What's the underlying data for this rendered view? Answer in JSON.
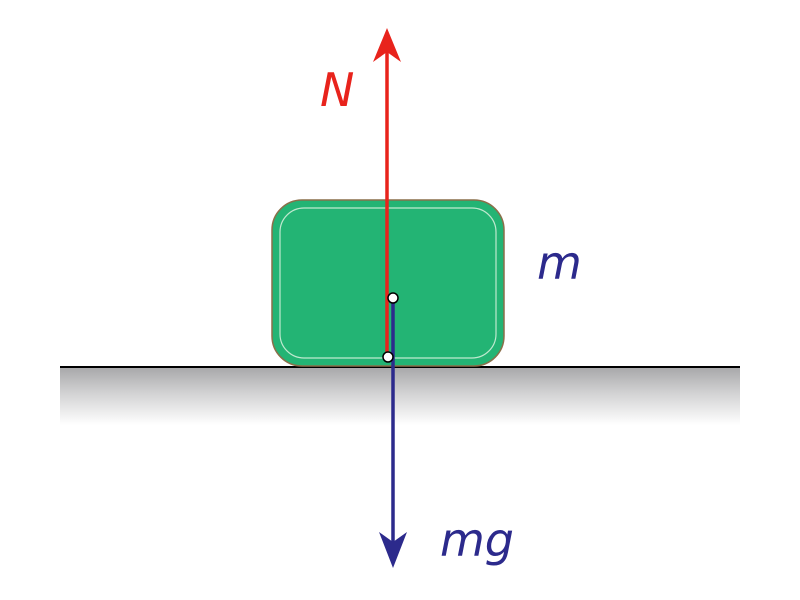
{
  "labels": {
    "normal_force": "N",
    "mass": "m",
    "weight": "mg"
  },
  "colors": {
    "normal_force": "#e8231c",
    "weight": "#2c2a8c",
    "mass_label": "#2c2a8c",
    "block_fill": "#23b474",
    "block_outline": "#8a6f4a",
    "ground_line": "#000000"
  }
}
